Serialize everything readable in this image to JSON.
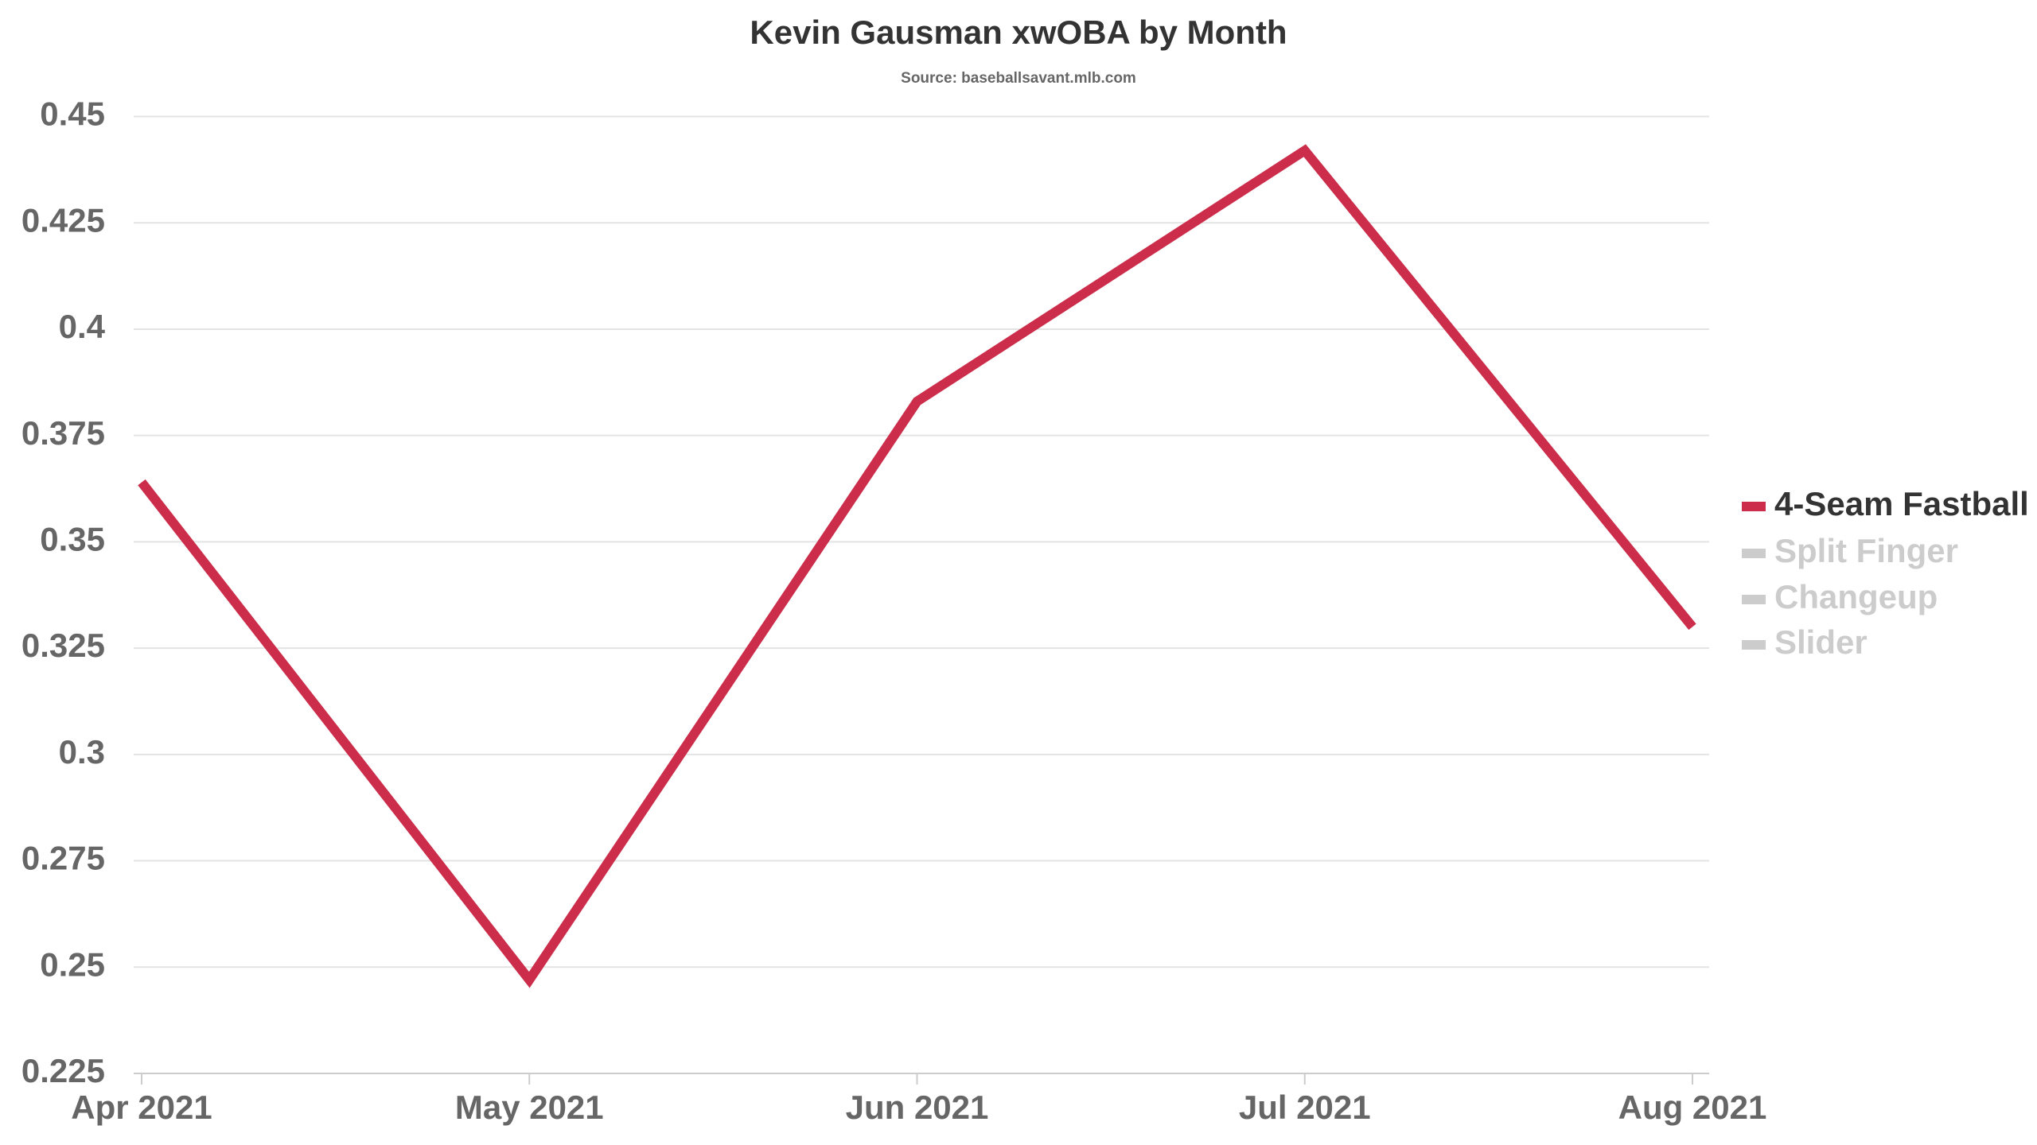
{
  "chart_data": {
    "type": "line",
    "title": "Kevin Gausman xwOBA by Month",
    "subtitle": "Source: baseballsavant.mlb.com",
    "x": [
      "2021-04",
      "2021-05",
      "2021-06",
      "2021-07",
      "2021-08"
    ],
    "xlim": [
      "2021-04",
      "2021-08"
    ],
    "xticks": [
      {
        "value": "2021-04",
        "label": "Apr 2021"
      },
      {
        "value": "2021-05",
        "label": "May 2021"
      },
      {
        "value": "2021-06",
        "label": "Jun 2021"
      },
      {
        "value": "2021-07",
        "label": "Jul 2021"
      },
      {
        "value": "2021-08",
        "label": "Aug 2021"
      }
    ],
    "ylim": [
      0.225,
      0.45
    ],
    "yticks": [
      0.225,
      0.25,
      0.275,
      0.3,
      0.325,
      0.35,
      0.375,
      0.4,
      0.425,
      0.45
    ],
    "grid": true,
    "legend": "right",
    "series": [
      {
        "name": "4-Seam Fastball",
        "color": "#cc2d4a",
        "values": [
          0.364,
          0.247,
          0.383,
          0.442,
          0.33
        ]
      },
      {
        "name": "Split Finger",
        "color": "#cccccc",
        "hidden": true,
        "values": [
          null,
          null,
          null,
          null,
          null
        ]
      },
      {
        "name": "Changeup",
        "color": "#cccccc",
        "hidden": true,
        "values": [
          null,
          null,
          null,
          null,
          null
        ]
      },
      {
        "name": "Slider",
        "color": "#cccccc",
        "hidden": true,
        "values": [
          null,
          null,
          null,
          null,
          null
        ]
      }
    ]
  }
}
